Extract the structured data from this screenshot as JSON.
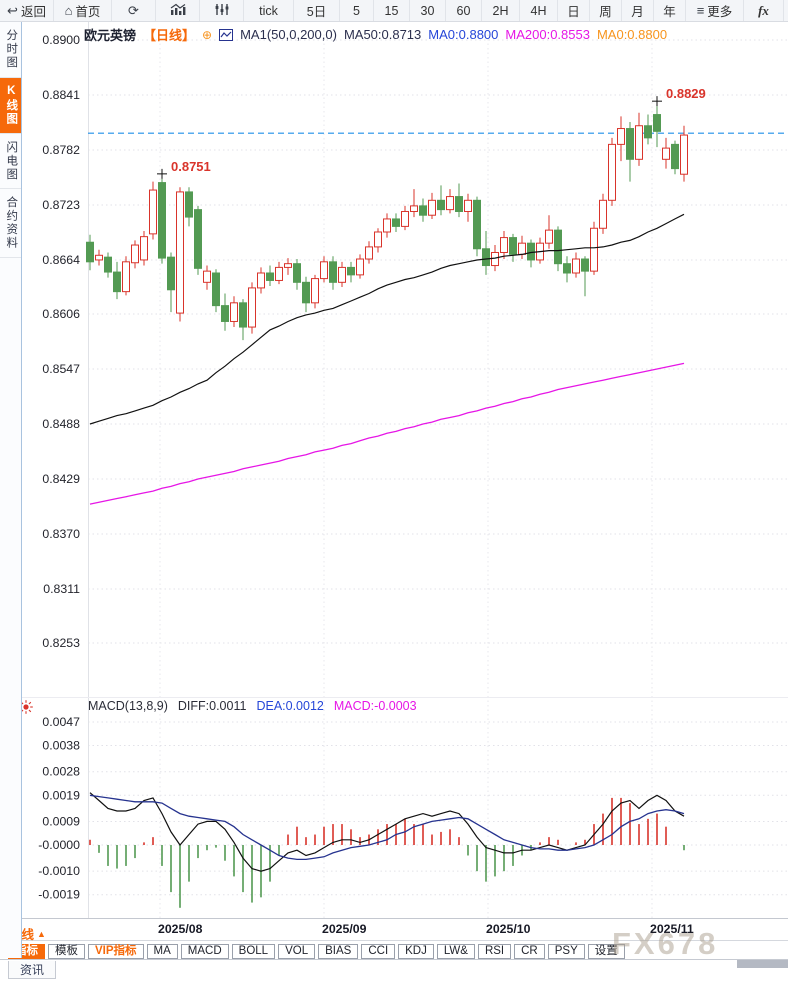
{
  "colors": {
    "orange": "#f6690a",
    "candle_up": "#d9342b",
    "candle_down": "#539a53",
    "ma50_line": "#111111",
    "ma200_line": "#e616e6",
    "diff_line": "#111111",
    "dea_line": "#26338f",
    "price_dash_line": "#1f8fe8",
    "annotation": "#d9342b"
  },
  "icon_glyphs": {
    "back-arrow": "↩",
    "home": "⌂",
    "refresh": "⟳",
    "menu": "≡"
  },
  "topbar": {
    "items": [
      {
        "name": "back-button",
        "label": "返回",
        "icon": "back-arrow"
      },
      {
        "name": "home-button",
        "label": "首页",
        "icon": "home"
      },
      {
        "name": "refresh-button",
        "label": "",
        "icon": "refresh"
      },
      {
        "name": "bar-chart-type-button",
        "label": "",
        "icon": "bar-chart"
      },
      {
        "name": "candle-chart-type-button",
        "label": "",
        "icon": "candle-chart"
      },
      {
        "name": "interval-tick-button",
        "label": "tick"
      },
      {
        "name": "interval-5d-button",
        "label": "5日"
      },
      {
        "name": "interval-5-button",
        "label": "5"
      },
      {
        "name": "interval-15-button",
        "label": "15"
      },
      {
        "name": "interval-30-button",
        "label": "30"
      },
      {
        "name": "interval-60-button",
        "label": "60"
      },
      {
        "name": "interval-2h-button",
        "label": "2H"
      },
      {
        "name": "interval-4h-button",
        "label": "4H"
      },
      {
        "name": "interval-day-button",
        "label": "日"
      },
      {
        "name": "interval-week-button",
        "label": "周"
      },
      {
        "name": "interval-month-button",
        "label": "月"
      },
      {
        "name": "interval-year-button",
        "label": "年"
      },
      {
        "name": "more-button",
        "label": "更多",
        "icon": "menu"
      },
      {
        "name": "fx-indicator-button",
        "label": "fx",
        "style": "fx"
      }
    ]
  },
  "sidebar": {
    "items": [
      {
        "name": "sidebar-item-time-chart",
        "label": "分时图",
        "active": false
      },
      {
        "name": "sidebar-item-kline-chart",
        "label": "K线图",
        "active": true
      },
      {
        "name": "sidebar-item-lightning-chart",
        "label": "闪电图",
        "active": false
      },
      {
        "name": "sidebar-item-contract-info",
        "label": "合约资料",
        "active": false
      }
    ]
  },
  "chart_header": {
    "symbol": "欧元英镑",
    "period_tag": "【日线】",
    "plus_icon": "⊕",
    "ma_param": "MA1(50,0,200,0)",
    "ma50": "MA50:0.8713",
    "ma0_blue": "MA0:0.8800",
    "ma200": "MA200:0.8553",
    "ma0_orange": "MA0:0.8800"
  },
  "macd_header": {
    "param": "MACD(13,8,9)",
    "diff": "DIFF:0.0011",
    "dea": "DEA:0.0012",
    "macd": "MACD:-0.0003"
  },
  "bottom": {
    "period_label": "日线",
    "period_arrow": "▲",
    "news_tab": "资讯",
    "indicator_tabs": [
      {
        "name": "tab-indicator",
        "label": "指标",
        "state": "active"
      },
      {
        "name": "tab-template",
        "label": "模板"
      },
      {
        "name": "tab-vip-indicator",
        "label": "VIP指标",
        "state": "vip"
      },
      {
        "name": "tab-ma",
        "label": "MA"
      },
      {
        "name": "tab-macd",
        "label": "MACD"
      },
      {
        "name": "tab-boll",
        "label": "BOLL"
      },
      {
        "name": "tab-vol",
        "label": "VOL"
      },
      {
        "name": "tab-bias",
        "label": "BIAS"
      },
      {
        "name": "tab-cci",
        "label": "CCI"
      },
      {
        "name": "tab-kdj",
        "label": "KDJ"
      },
      {
        "name": "tab-lw",
        "label": "LW&"
      },
      {
        "name": "tab-rsi",
        "label": "RSI"
      },
      {
        "name": "tab-cr",
        "label": "CR"
      },
      {
        "name": "tab-psy",
        "label": "PSY"
      },
      {
        "name": "tab-settings",
        "label": "设置"
      }
    ]
  },
  "watermark": "FX678",
  "chart_data": {
    "type": "candlestick+macd",
    "symbol": "欧元英镑",
    "period": "日线",
    "price_axis_labels": [
      "0.8900",
      "0.8841",
      "0.8782",
      "0.8723",
      "0.8664",
      "0.8606",
      "0.8547",
      "0.8488",
      "0.8429",
      "0.8370",
      "0.8311",
      "0.8253"
    ],
    "price_range": [
      0.8253,
      0.89
    ],
    "macd_axis_labels": [
      "0.0047",
      "0.0038",
      "0.0028",
      "0.0019",
      "0.0009",
      "-0.0000",
      "-0.0010",
      "-0.0019"
    ],
    "months": [
      {
        "label": "2025/08"
      },
      {
        "label": "2025/09"
      },
      {
        "label": "2025/10"
      },
      {
        "label": "2025/11"
      }
    ],
    "current_price_line": 0.88,
    "annotations": [
      {
        "label": "0.8751",
        "price": 0.8751,
        "candle_index": 8
      },
      {
        "label": "0.8829",
        "price": 0.8829,
        "candle_index": 63
      }
    ],
    "candles": [
      [
        0.8683,
        0.8691,
        0.8653,
        0.8662
      ],
      [
        0.8664,
        0.8675,
        0.8658,
        0.8669
      ],
      [
        0.8667,
        0.8672,
        0.8645,
        0.8651
      ],
      [
        0.8651,
        0.8662,
        0.8622,
        0.863
      ],
      [
        0.863,
        0.8668,
        0.8626,
        0.8662
      ],
      [
        0.8661,
        0.8685,
        0.8655,
        0.868
      ],
      [
        0.8664,
        0.8695,
        0.8658,
        0.8689
      ],
      [
        0.8692,
        0.8748,
        0.8686,
        0.8739
      ],
      [
        0.8747,
        0.8751,
        0.866,
        0.8666
      ],
      [
        0.8667,
        0.8672,
        0.8608,
        0.8632
      ],
      [
        0.8607,
        0.8742,
        0.8598,
        0.8737
      ],
      [
        0.8737,
        0.8742,
        0.87,
        0.871
      ],
      [
        0.8718,
        0.8722,
        0.8648,
        0.8655
      ],
      [
        0.864,
        0.8658,
        0.8632,
        0.8652
      ],
      [
        0.865,
        0.8654,
        0.8608,
        0.8615
      ],
      [
        0.8615,
        0.8628,
        0.8588,
        0.8598
      ],
      [
        0.8598,
        0.8625,
        0.8592,
        0.8618
      ],
      [
        0.8618,
        0.8622,
        0.8578,
        0.8592
      ],
      [
        0.8592,
        0.864,
        0.8585,
        0.8634
      ],
      [
        0.8634,
        0.8656,
        0.8628,
        0.865
      ],
      [
        0.865,
        0.8658,
        0.8636,
        0.8642
      ],
      [
        0.8642,
        0.8662,
        0.8638,
        0.8656
      ],
      [
        0.8656,
        0.8666,
        0.8648,
        0.866
      ],
      [
        0.866,
        0.8665,
        0.8632,
        0.864
      ],
      [
        0.864,
        0.8646,
        0.8608,
        0.8618
      ],
      [
        0.8618,
        0.8648,
        0.8612,
        0.8644
      ],
      [
        0.8644,
        0.8668,
        0.864,
        0.8662
      ],
      [
        0.8662,
        0.8668,
        0.8632,
        0.864
      ],
      [
        0.864,
        0.8662,
        0.8635,
        0.8656
      ],
      [
        0.8656,
        0.8662,
        0.864,
        0.8648
      ],
      [
        0.8648,
        0.867,
        0.8644,
        0.8665
      ],
      [
        0.8665,
        0.8684,
        0.866,
        0.8678
      ],
      [
        0.8678,
        0.8698,
        0.8672,
        0.8694
      ],
      [
        0.8694,
        0.8714,
        0.8688,
        0.8708
      ],
      [
        0.8708,
        0.8714,
        0.8694,
        0.87
      ],
      [
        0.87,
        0.8722,
        0.8696,
        0.8716
      ],
      [
        0.8716,
        0.874,
        0.871,
        0.8722
      ],
      [
        0.8722,
        0.873,
        0.8705,
        0.8712
      ],
      [
        0.8712,
        0.8736,
        0.8708,
        0.8728
      ],
      [
        0.8728,
        0.8744,
        0.8712,
        0.8718
      ],
      [
        0.8718,
        0.874,
        0.8714,
        0.8732
      ],
      [
        0.8732,
        0.8746,
        0.871,
        0.8716
      ],
      [
        0.8716,
        0.8735,
        0.8705,
        0.8728
      ],
      [
        0.8728,
        0.8732,
        0.8668,
        0.8676
      ],
      [
        0.8676,
        0.8695,
        0.8648,
        0.8658
      ],
      [
        0.8658,
        0.868,
        0.8652,
        0.8672
      ],
      [
        0.8672,
        0.8695,
        0.8665,
        0.8688
      ],
      [
        0.8688,
        0.8692,
        0.8662,
        0.867
      ],
      [
        0.867,
        0.869,
        0.8665,
        0.8682
      ],
      [
        0.8682,
        0.8686,
        0.8656,
        0.8664
      ],
      [
        0.8664,
        0.8688,
        0.866,
        0.8682
      ],
      [
        0.8682,
        0.8712,
        0.8676,
        0.8696
      ],
      [
        0.8696,
        0.87,
        0.8652,
        0.866
      ],
      [
        0.866,
        0.8668,
        0.864,
        0.865
      ],
      [
        0.865,
        0.8672,
        0.8645,
        0.8665
      ],
      [
        0.8665,
        0.8668,
        0.8625,
        0.8652
      ],
      [
        0.8652,
        0.8705,
        0.8648,
        0.8698
      ],
      [
        0.8698,
        0.8735,
        0.8692,
        0.8728
      ],
      [
        0.8728,
        0.8795,
        0.8722,
        0.8788
      ],
      [
        0.8788,
        0.8818,
        0.877,
        0.8805
      ],
      [
        0.8805,
        0.8812,
        0.8748,
        0.8772
      ],
      [
        0.8772,
        0.8822,
        0.8765,
        0.8808
      ],
      [
        0.8808,
        0.882,
        0.8788,
        0.8795
      ],
      [
        0.882,
        0.8829,
        0.8785,
        0.8802
      ],
      [
        0.8772,
        0.8795,
        0.8762,
        0.8784
      ],
      [
        0.8788,
        0.8792,
        0.8756,
        0.8762
      ],
      [
        0.8756,
        0.8808,
        0.8748,
        0.8798
      ]
    ],
    "ma50": [
      0.8488,
      0.8491,
      0.8494,
      0.8497,
      0.8499,
      0.8502,
      0.8505,
      0.8508,
      0.8513,
      0.8517,
      0.8522,
      0.8526,
      0.8531,
      0.8535,
      0.8543,
      0.855,
      0.8558,
      0.8565,
      0.8573,
      0.8581,
      0.8589,
      0.8593,
      0.8598,
      0.8602,
      0.8605,
      0.8607,
      0.861,
      0.8612,
      0.8616,
      0.862,
      0.8624,
      0.8628,
      0.8633,
      0.8637,
      0.864,
      0.8643,
      0.8645,
      0.8648,
      0.8651,
      0.8655,
      0.8658,
      0.866,
      0.8662,
      0.8664,
      0.8665,
      0.8666,
      0.8668,
      0.8669,
      0.867,
      0.8672,
      0.8673,
      0.8674,
      0.8674,
      0.8675,
      0.8676,
      0.8677,
      0.8677,
      0.8678,
      0.868,
      0.8683,
      0.8685,
      0.8689,
      0.8694,
      0.8698,
      0.8703,
      0.8708,
      0.8713
    ],
    "ma200": [
      0.8402,
      0.8404,
      0.8406,
      0.8408,
      0.841,
      0.8412,
      0.8414,
      0.8416,
      0.8419,
      0.8421,
      0.8424,
      0.8426,
      0.8429,
      0.8431,
      0.8433,
      0.8435,
      0.8437,
      0.844,
      0.8442,
      0.8444,
      0.8446,
      0.8448,
      0.8451,
      0.8453,
      0.8455,
      0.8458,
      0.846,
      0.8462,
      0.8465,
      0.8467,
      0.847,
      0.8473,
      0.8475,
      0.8478,
      0.848,
      0.8483,
      0.8485,
      0.8488,
      0.849,
      0.8493,
      0.8495,
      0.8497,
      0.85,
      0.8502,
      0.8505,
      0.8507,
      0.851,
      0.8512,
      0.8515,
      0.8517,
      0.852,
      0.8522,
      0.8525,
      0.8527,
      0.8529,
      0.8531,
      0.8533,
      0.8535,
      0.8537,
      0.8539,
      0.8541,
      0.8543,
      0.8545,
      0.8547,
      0.8549,
      0.8551,
      0.8553
    ],
    "macd": {
      "diff": [
        0.002,
        0.0017,
        0.0014,
        0.0013,
        0.0013,
        0.0014,
        0.0017,
        0.0018,
        0.0012,
        0.0005,
        0.0,
        0.0004,
        0.0008,
        0.0009,
        0.0009,
        0.0006,
        0.0001,
        -0.0005,
        -0.0009,
        -0.001,
        -0.0009,
        -0.0006,
        -0.0003,
        -0.0002,
        -0.0004,
        -0.0003,
        -0.0001,
        0.0001,
        0.0002,
        0.0002,
        0.0001,
        0.0002,
        0.0004,
        0.0006,
        0.0008,
        0.001,
        0.0011,
        0.0012,
        0.0011,
        0.0012,
        0.0013,
        0.0012,
        0.0008,
        0.0003,
        -0.0001,
        -0.0002,
        -0.0003,
        -0.0003,
        -0.0002,
        -0.0002,
        -0.0001,
        0.0,
        -0.0001,
        -0.0002,
        -0.0001,
        0.0,
        0.0004,
        0.0008,
        0.0013,
        0.0016,
        0.0017,
        0.0014,
        0.0017,
        0.0019,
        0.0017,
        0.0013,
        0.0011
      ],
      "dea": [
        0.0019,
        0.00185,
        0.0018,
        0.00175,
        0.0017,
        0.00165,
        0.00165,
        0.00165,
        0.0016,
        0.0014,
        0.0012,
        0.0011,
        0.00105,
        0.001,
        0.00095,
        0.0009,
        0.0007,
        0.0004,
        0.0002,
        0.0,
        -0.0002,
        -0.0004,
        -0.0005,
        -0.00055,
        -0.00055,
        -0.0005,
        -0.00045,
        -0.0003,
        -0.0002,
        -0.0001,
        -5e-05,
        0.0,
        0.0001,
        0.0002,
        0.0004,
        0.0005,
        0.0007,
        0.0008,
        0.0009,
        0.00095,
        0.001,
        0.00105,
        0.001,
        0.0008,
        0.0006,
        0.0004,
        0.0002,
        0.0001,
        0.0,
        -0.0001,
        -0.00015,
        -0.00015,
        -0.0002,
        -0.0002,
        -0.00015,
        -0.0001,
        0.0,
        0.0002,
        0.0004,
        0.0007,
        0.0009,
        0.001,
        0.0012,
        0.0013,
        0.00135,
        0.0013,
        0.0012
      ]
    }
  }
}
